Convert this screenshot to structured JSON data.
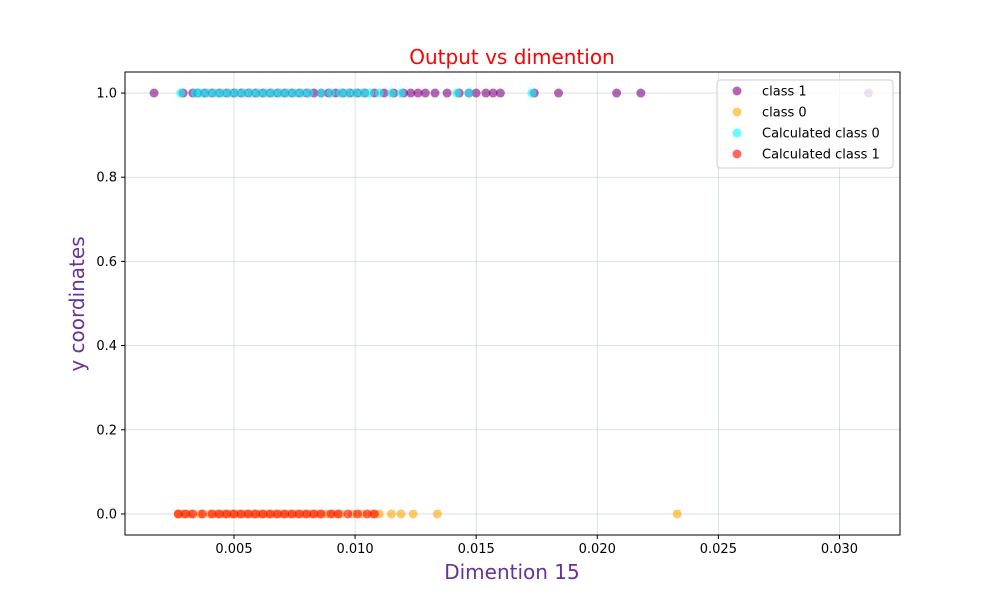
{
  "chart_data": {
    "type": "scatter",
    "title": "Output vs dimention",
    "title_color": "#ff0000",
    "xlabel": "Dimention 15",
    "ylabel": "y coordinates",
    "label_color": "#663399",
    "xlim": [
      0.0005,
      0.0325
    ],
    "ylim": [
      -0.05,
      1.05
    ],
    "xticks": [
      "0.005",
      "0.010",
      "0.015",
      "0.020",
      "0.025",
      "0.030"
    ],
    "xtick_values": [
      0.005,
      0.01,
      0.015,
      0.02,
      0.025,
      0.03
    ],
    "yticks": [
      "0.0",
      "0.2",
      "0.4",
      "0.6",
      "0.8",
      "1.0"
    ],
    "ytick_values": [
      0.0,
      0.2,
      0.4,
      0.6,
      0.8,
      1.0
    ],
    "grid": true,
    "legend_position": "top-right",
    "series": [
      {
        "name": "class 1",
        "color": "#800080",
        "y": 1.0,
        "x": [
          0.0017,
          0.0029,
          0.0033,
          0.0035,
          0.0038,
          0.0041,
          0.0044,
          0.0047,
          0.005,
          0.0053,
          0.0056,
          0.0059,
          0.0062,
          0.0065,
          0.0068,
          0.0071,
          0.0074,
          0.0077,
          0.008,
          0.0083,
          0.0086,
          0.0089,
          0.0092,
          0.0095,
          0.0098,
          0.0101,
          0.0104,
          0.0108,
          0.0112,
          0.0116,
          0.012,
          0.0123,
          0.0126,
          0.0129,
          0.0133,
          0.0138,
          0.0143,
          0.0147,
          0.015,
          0.0154,
          0.0157,
          0.016,
          0.0174,
          0.0184,
          0.0208,
          0.0218,
          0.0312
        ]
      },
      {
        "name": "class 0",
        "color": "#ffa500",
        "y": 0.0,
        "x": [
          0.0027,
          0.0029,
          0.0032,
          0.0036,
          0.004,
          0.0043,
          0.0046,
          0.0049,
          0.0052,
          0.0055,
          0.0058,
          0.0061,
          0.0064,
          0.0067,
          0.007,
          0.0073,
          0.0076,
          0.0079,
          0.0082,
          0.0085,
          0.0088,
          0.0091,
          0.0094,
          0.0099,
          0.0103,
          0.0107,
          0.011,
          0.0115,
          0.0119,
          0.0124,
          0.0134,
          0.0233
        ]
      },
      {
        "name": "Calculated class 0",
        "color": "#00ffff",
        "y": 1.0,
        "x": [
          0.0028,
          0.0034,
          0.0036,
          0.0039,
          0.0042,
          0.0045,
          0.0048,
          0.0051,
          0.0054,
          0.0057,
          0.006,
          0.0063,
          0.0066,
          0.0069,
          0.0072,
          0.0075,
          0.0078,
          0.0081,
          0.0086,
          0.009,
          0.0094,
          0.0097,
          0.01,
          0.0103,
          0.0106,
          0.011,
          0.0115,
          0.0119,
          0.0142,
          0.0147,
          0.0173
        ]
      },
      {
        "name": "Calculated class 1",
        "color": "#ff0000",
        "y": 0.0,
        "x": [
          0.0027,
          0.003,
          0.0033,
          0.0037,
          0.0041,
          0.0044,
          0.0047,
          0.005,
          0.0053,
          0.0056,
          0.0059,
          0.0062,
          0.0065,
          0.0068,
          0.0071,
          0.0074,
          0.0077,
          0.008,
          0.0083,
          0.0086,
          0.009,
          0.0093,
          0.0097,
          0.0101,
          0.0105,
          0.0108
        ]
      }
    ]
  }
}
